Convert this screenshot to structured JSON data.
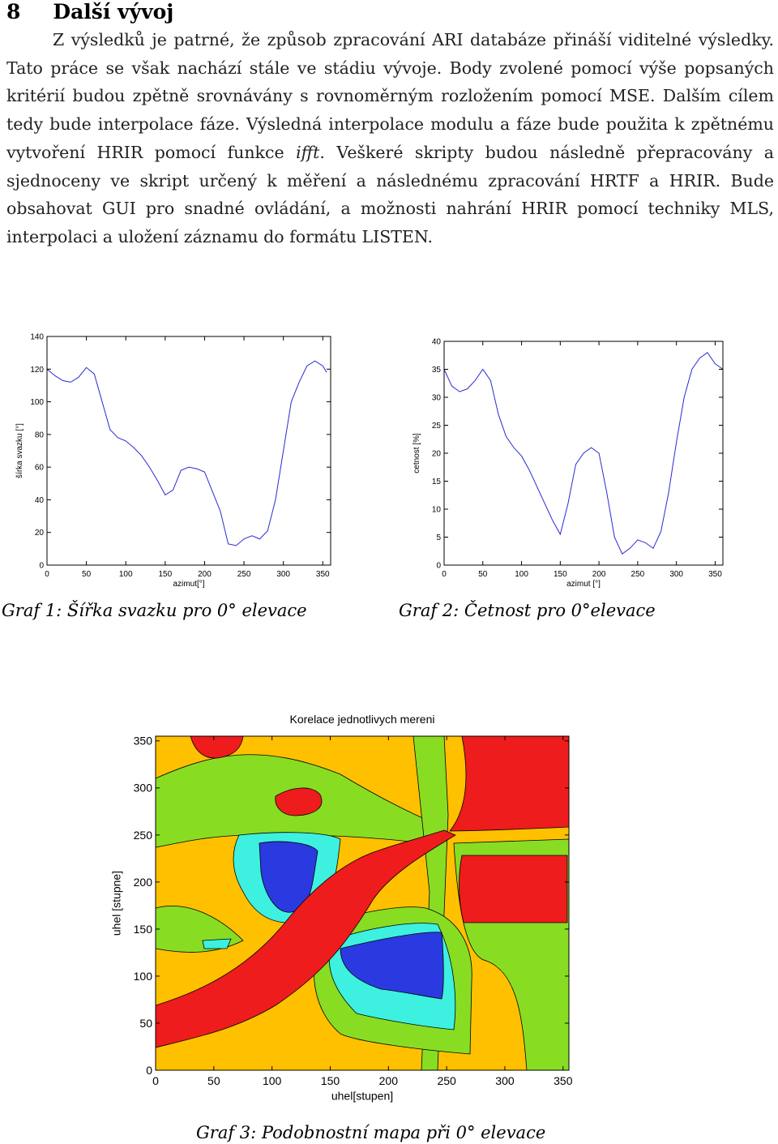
{
  "heading": {
    "number": "8",
    "title": "Další vývoj"
  },
  "paragraph": {
    "text_before": "Z výsledků je patrné, že způsob zpracování ARI databáze přináší viditelné výsledky. Tato práce se však nachází stále ve stádiu vývoje. Body zvolené pomocí výše popsaných kritérií budou zpětně srovnávány s rovnoměrným rozložením pomocí MSE. Dalším cílem tedy bude interpolace fáze. Výsledná interpolace modulu a fáze bude použita k zpětnému vytvoření HRIR pomocí funkce ",
    "emphasis": "ifft",
    "text_after": ". Veškeré skripty budou následně přepracovány a sjednoceny ve skript určený k měření a následnému zpracování HRTF a HRIR. Bude obsahovat GUI pro snadné ovládání, a možnosti nahrání HRIR pomocí techniky MLS, interpolaci a uložení záznamu do formátu LISTEN."
  },
  "chart_data": [
    {
      "type": "line",
      "caption": "Graf 1: Šířka svazku pro 0° elevace",
      "xlabel": "azimut[°]",
      "ylabel": "šírka svazku [°]",
      "color": "#2a2ad0",
      "x": [
        0,
        10,
        20,
        30,
        40,
        50,
        60,
        70,
        80,
        90,
        100,
        110,
        120,
        130,
        140,
        150,
        160,
        170,
        180,
        190,
        200,
        210,
        220,
        230,
        240,
        250,
        260,
        270,
        280,
        290,
        300,
        310,
        320,
        330,
        340,
        350,
        355
      ],
      "values": [
        120,
        116,
        113,
        112,
        115,
        121,
        117,
        100,
        83,
        78,
        76,
        72,
        67,
        60,
        52,
        43,
        46,
        58,
        60,
        59,
        57,
        45,
        33,
        13,
        12,
        16,
        18,
        16,
        21,
        40,
        70,
        100,
        112,
        122,
        125,
        122,
        118
      ],
      "xlim": [
        0,
        360
      ],
      "ylim": [
        0,
        140
      ],
      "xticks": [
        0,
        50,
        100,
        150,
        200,
        250,
        300,
        350
      ],
      "yticks": [
        0,
        20,
        40,
        60,
        80,
        100,
        120,
        140
      ]
    },
    {
      "type": "line",
      "caption": "Graf 2: Četnost pro 0°elevace",
      "xlabel": "azimut [°]",
      "ylabel": "cetnost [%]",
      "color": "#2a2ad0",
      "x": [
        0,
        10,
        20,
        30,
        40,
        50,
        60,
        70,
        80,
        90,
        100,
        110,
        120,
        130,
        140,
        150,
        160,
        170,
        180,
        190,
        200,
        210,
        220,
        230,
        240,
        250,
        260,
        270,
        280,
        290,
        300,
        310,
        320,
        330,
        340,
        350,
        360
      ],
      "values": [
        35,
        32,
        31,
        31.5,
        33,
        35,
        33,
        27,
        23,
        21,
        19.5,
        17,
        14,
        11,
        8,
        5.5,
        11,
        18,
        20,
        21,
        20,
        13,
        5,
        2,
        3,
        4.5,
        4,
        3,
        6,
        13,
        22,
        30,
        35,
        37,
        38,
        36,
        35
      ],
      "xlim": [
        0,
        360
      ],
      "ylim": [
        0,
        40
      ],
      "xticks": [
        0,
        50,
        100,
        150,
        200,
        250,
        300,
        350
      ],
      "yticks": [
        0,
        5,
        10,
        15,
        20,
        25,
        30,
        35,
        40
      ]
    },
    {
      "type": "contour",
      "title": "Korelace jednotlivych mereni",
      "caption": "Graf 3: Podobnostní mapa při 0° elevace",
      "xlabel": "uhel[stupen]",
      "ylabel": "uhel [stupne]",
      "xlim": [
        0,
        355
      ],
      "ylim": [
        0,
        355
      ],
      "xticks": [
        0,
        50,
        100,
        150,
        200,
        250,
        300,
        350
      ],
      "yticks": [
        0,
        50,
        100,
        150,
        200,
        250,
        300,
        350
      ]
    }
  ]
}
